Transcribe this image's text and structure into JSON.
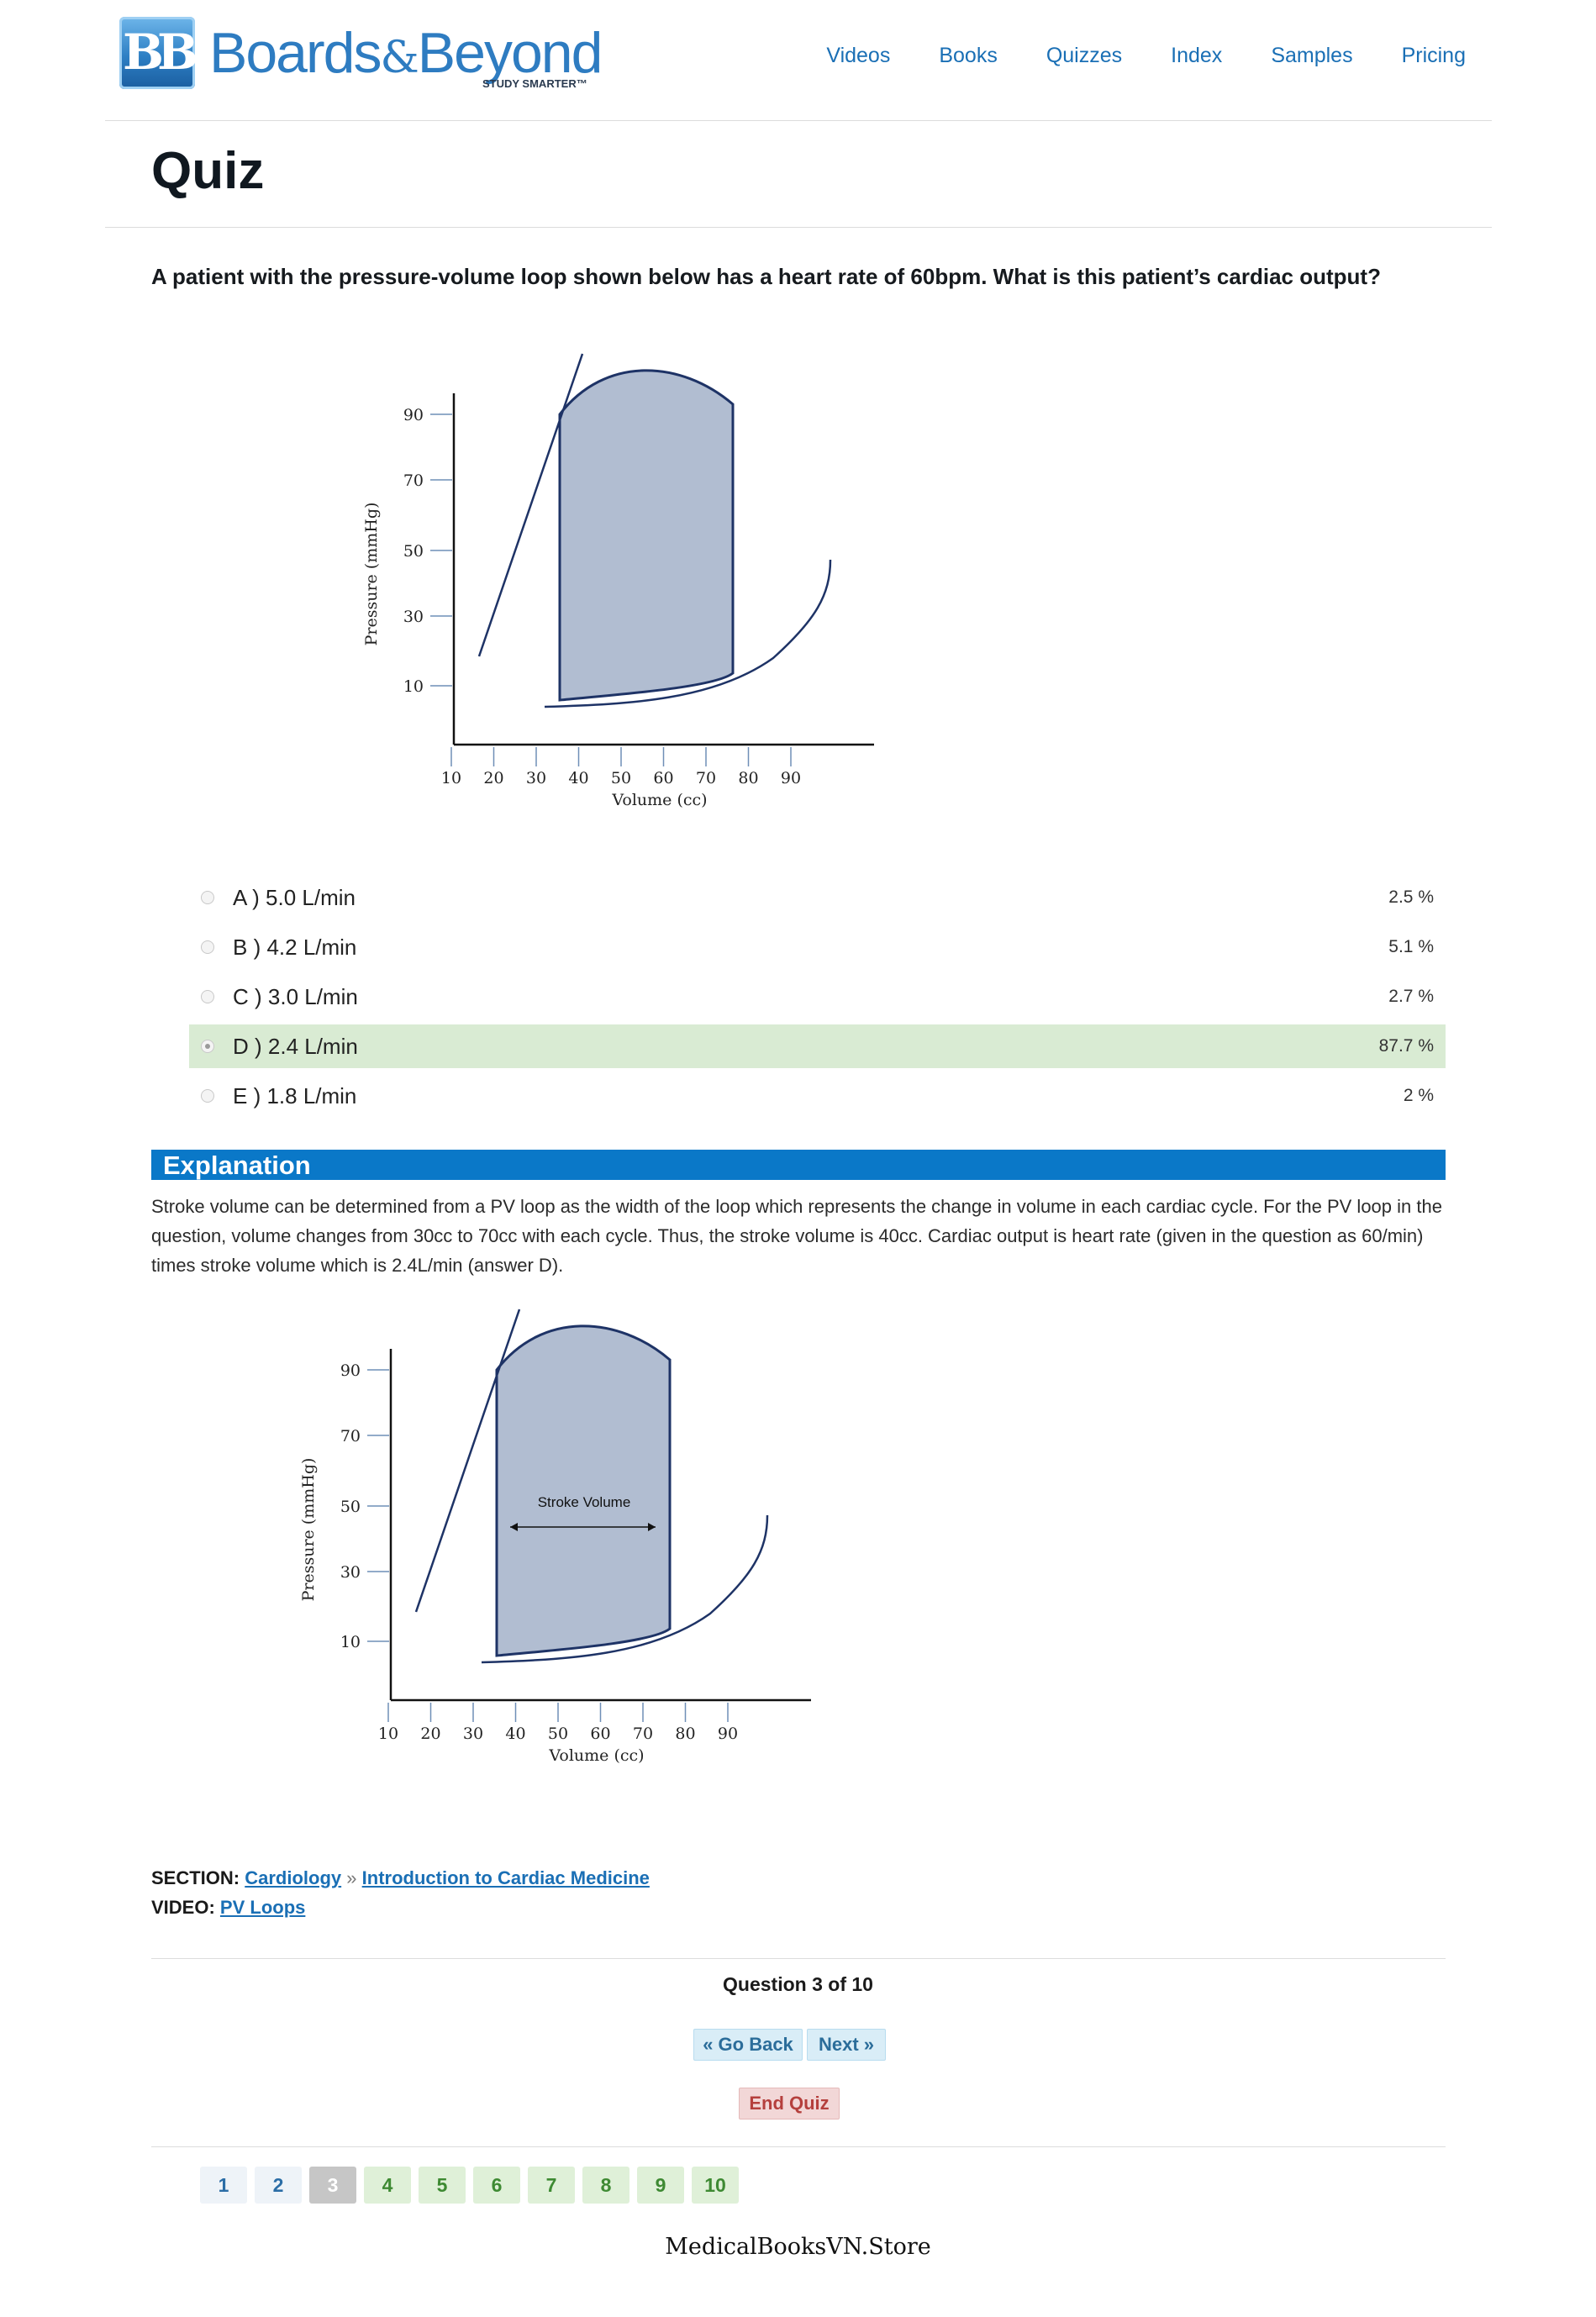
{
  "header": {
    "logo_text": "Boards&Beyond",
    "logo_tagline": "STUDY SMARTER™",
    "nav": [
      "Videos",
      "Books",
      "Quizzes",
      "Index",
      "Samples",
      "Pricing"
    ]
  },
  "page_title": "Quiz",
  "question": "A patient with the pressure-volume loop shown below has a heart rate of 60bpm. What is this patient’s cardiac output?",
  "figure": {
    "y_label": "Pressure (mmHg)",
    "x_label": "Volume (cc)",
    "y_ticks": [
      "90",
      "70",
      "50",
      "30",
      "10"
    ],
    "x_ticks": [
      "10",
      "20",
      "30",
      "40",
      "50",
      "60",
      "70",
      "80",
      "90"
    ],
    "fill_color": "#b1bdd1",
    "line_color": "#1e3366"
  },
  "answers": [
    {
      "letter": "A",
      "label": "A ) 5.0 L/min",
      "percent": "2.5 %",
      "correct": false
    },
    {
      "letter": "B",
      "label": "B ) 4.2 L/min",
      "percent": "5.1 %",
      "correct": false
    },
    {
      "letter": "C",
      "label": "C ) 3.0 L/min",
      "percent": "2.7 %",
      "correct": false
    },
    {
      "letter": "D",
      "label": "D ) 2.4 L/min",
      "percent": "87.7 %",
      "correct": true
    },
    {
      "letter": "E",
      "label": "E ) 1.8 L/min",
      "percent": "2 %",
      "correct": false
    }
  ],
  "explanation": {
    "heading": "Explanation",
    "text": "Stroke volume can be determined from a PV loop as the width of the loop which represents the change in volume in each cardiac cycle. For the PV loop in the question, volume changes from 30cc to 70cc with each cycle. Thus, the stroke volume is 40cc. Cardiac output is heart rate (given in the question as 60/min) times stroke volume which is 2.4L/min (answer D).",
    "figure_annotation": "Stroke Volume"
  },
  "section": {
    "label": "SECTION:",
    "link1": "Cardiology",
    "separator": "»",
    "link2": "Introduction to Cardiac Medicine"
  },
  "video": {
    "label": "VIDEO:",
    "link": "PV Loops"
  },
  "navigation": {
    "question_count": "Question 3 of 10",
    "back": "« Go Back",
    "next": "Next »",
    "end": "End Quiz"
  },
  "pager": [
    {
      "label": "1",
      "state": "done"
    },
    {
      "label": "2",
      "state": "done"
    },
    {
      "label": "3",
      "state": "current"
    },
    {
      "label": "4",
      "state": "todo"
    },
    {
      "label": "5",
      "state": "todo"
    },
    {
      "label": "6",
      "state": "todo"
    },
    {
      "label": "7",
      "state": "todo"
    },
    {
      "label": "8",
      "state": "todo"
    },
    {
      "label": "9",
      "state": "todo"
    },
    {
      "label": "10",
      "state": "todo"
    }
  ],
  "watermark": "MedicalBooksVN.Store"
}
